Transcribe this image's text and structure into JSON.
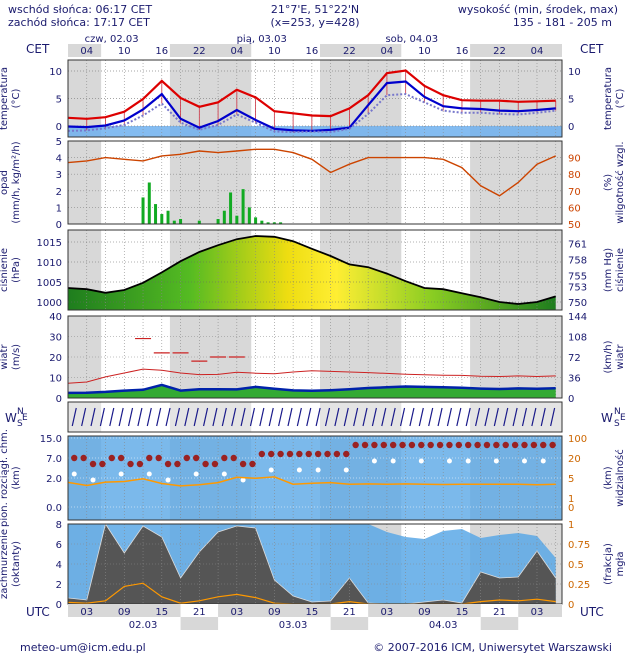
{
  "header": {
    "sunrise": "wschód słońca: 06:17 CET",
    "sunset": "zachód słońca: 17:17 CET",
    "coords": "21°7'E, 51°22'N",
    "grid": "(x=253,  y=428)",
    "height_title": "wysokość (min, środek, max)",
    "height_values": "135 - 181 - 205 m"
  },
  "top_axis": {
    "tz": "CET",
    "days": [
      "czw, 02.03",
      "pią, 03.03",
      "sob, 04.03"
    ],
    "hours": [
      "04",
      "10",
      "16",
      "22",
      "04",
      "10",
      "16",
      "22",
      "04",
      "10",
      "16",
      "22",
      "04"
    ]
  },
  "bottom_axis": {
    "tz": "UTC",
    "hours": [
      "03",
      "09",
      "15",
      "21",
      "03",
      "09",
      "15",
      "21",
      "03",
      "09",
      "15",
      "21",
      "03"
    ],
    "days": [
      "02.03",
      "03.03",
      "04.03"
    ]
  },
  "footer": {
    "email": "meteo-um@icm.edu.pl",
    "copyright": "© 2007-2016 ICM, Uniwersytet Warszawski"
  },
  "chart_data": [
    {
      "type": "line",
      "id": "temperature",
      "title_left": [
        "temperatura",
        "(°C)"
      ],
      "title_right": [
        "temperatura",
        "(°C)"
      ],
      "y_ticks": [
        "10",
        "5",
        "0"
      ],
      "ylim": [
        -2,
        12
      ],
      "x_hours_utc": [
        0,
        3,
        6,
        9,
        12,
        15,
        18,
        21,
        24,
        27,
        30,
        33,
        36,
        39,
        42,
        45,
        48,
        51,
        54,
        57,
        60,
        63,
        66,
        69,
        72,
        75,
        78
      ],
      "series": [
        {
          "name": "max",
          "color": "#dd0000",
          "values": [
            1.5,
            1.3,
            1.6,
            2.6,
            4.9,
            8.2,
            5.1,
            3.5,
            4.3,
            6.6,
            5.2,
            2.7,
            2.3,
            1.9,
            1.8,
            3.2,
            5.6,
            9.6,
            10.1,
            7.3,
            5.6,
            4.7,
            4.6,
            4.6,
            4.4,
            4.5,
            4.6
          ]
        },
        {
          "name": "mid",
          "color": "#0000cc",
          "values": [
            -0.1,
            -0.2,
            0.1,
            1.0,
            3.0,
            5.8,
            1.3,
            -0.3,
            0.9,
            2.9,
            1.1,
            -0.5,
            -0.8,
            -0.9,
            -0.7,
            -0.3,
            3.8,
            7.8,
            8.1,
            5.3,
            3.6,
            3.2,
            3.1,
            2.8,
            2.7,
            2.9,
            3.2
          ]
        },
        {
          "name": "min",
          "color": "#7777cc",
          "values": [
            -0.9,
            -0.8,
            -0.4,
            0.2,
            1.9,
            4.1,
            0.6,
            -0.7,
            0.2,
            2.1,
            0.6,
            -1.0,
            -1.1,
            -1.0,
            -1.1,
            -0.5,
            2.2,
            5.6,
            5.8,
            4.3,
            2.8,
            2.4,
            2.4,
            2.2,
            2.1,
            2.4,
            2.8
          ]
        }
      ]
    },
    {
      "type": "bar",
      "id": "precipitation",
      "title_left": [
        "opad",
        "(mm/h, kg/m²/h)"
      ],
      "title_right": [
        "(%)",
        "wilgotność wzgl."
      ],
      "y_ticks_left": [
        "5",
        "4",
        "3",
        "2",
        "1",
        "0"
      ],
      "ylim_left": [
        0,
        5
      ],
      "y_ticks_right": [
        "90",
        "80",
        "70",
        "60",
        "50"
      ],
      "ylim_right": [
        50,
        100
      ],
      "precip_hours_utc": [
        12,
        13,
        14,
        15,
        16,
        17,
        18,
        21,
        24,
        25,
        26,
        27,
        28,
        29,
        30,
        31,
        32,
        33,
        34
      ],
      "precip_values": [
        1.6,
        2.5,
        1.2,
        0.6,
        0.8,
        0.2,
        0.3,
        0.2,
        0.3,
        0.8,
        1.9,
        0.5,
        2.1,
        1.0,
        0.4,
        0.2,
        0.1,
        0.1,
        0.1
      ],
      "humidity": {
        "name": "wilgotność wzgl.",
        "color": "#cc4400",
        "x_hours_utc": [
          0,
          3,
          6,
          9,
          12,
          15,
          18,
          21,
          24,
          27,
          30,
          33,
          36,
          39,
          42,
          45,
          48,
          51,
          54,
          57,
          60,
          63,
          66,
          69,
          72,
          75,
          78
        ],
        "values": [
          87,
          88,
          90,
          89,
          88,
          91,
          92,
          94,
          93,
          94,
          95,
          95,
          93,
          89,
          81,
          86,
          90,
          90,
          90,
          90,
          89,
          84,
          73,
          67,
          75,
          86,
          91
        ]
      }
    },
    {
      "type": "area",
      "id": "pressure",
      "title_left": [
        "ciśnienie",
        "(hPa)"
      ],
      "title_right": [
        "(mm Hg)",
        "ciśnienie"
      ],
      "y_ticks_left": [
        "1015",
        "1010",
        "1005",
        "1000"
      ],
      "ylim_left": [
        998,
        1018
      ],
      "y_ticks_right": [
        "761",
        "758",
        "755",
        "753",
        "750"
      ],
      "x_hours_utc": [
        0,
        3,
        6,
        9,
        12,
        15,
        18,
        21,
        24,
        27,
        30,
        33,
        36,
        39,
        42,
        45,
        48,
        51,
        54,
        57,
        60,
        63,
        66,
        69,
        72,
        75,
        78
      ],
      "values": [
        1003.5,
        1003.2,
        1002.3,
        1003.0,
        1004.8,
        1007.4,
        1010.2,
        1012.5,
        1014.2,
        1015.7,
        1016.5,
        1016.3,
        1015.2,
        1013.3,
        1011.5,
        1009.4,
        1008.7,
        1007.1,
        1005.2,
        1003.5,
        1003.2,
        1002.2,
        1001.2,
        1000.0,
        999.5,
        1000.0,
        1001.4
      ]
    },
    {
      "type": "line",
      "id": "wind",
      "title_left": [
        "wiatr",
        "(m/s)"
      ],
      "title_right": [
        "(km/h)",
        "wiatr"
      ],
      "y_ticks_left": [
        "40",
        "30",
        "20",
        "10",
        "0"
      ],
      "ylim_left": [
        0,
        40
      ],
      "y_ticks_right": [
        "144",
        "108",
        "72",
        "36",
        "0"
      ],
      "x_hours_utc": [
        0,
        3,
        6,
        9,
        12,
        15,
        18,
        21,
        24,
        27,
        30,
        33,
        36,
        39,
        42,
        45,
        48,
        51,
        54,
        57,
        60,
        63,
        66,
        69,
        72,
        75,
        78
      ],
      "gust_values": [
        7.2,
        7.8,
        10.3,
        12.2,
        14.1,
        13.5,
        12.2,
        11.4,
        11.5,
        12.6,
        12.1,
        11.8,
        12.7,
        13.3,
        13.0,
        12.7,
        12.4,
        12.0,
        11.6,
        11.3,
        11.1,
        11.0,
        10.6,
        10.5,
        10.8,
        10.5,
        10.8
      ],
      "gust_marks_hours_utc": [
        12,
        15,
        18,
        21,
        24,
        27
      ],
      "gust_marks_values": [
        29,
        22,
        22,
        18,
        20,
        20
      ],
      "speed_values": [
        2.5,
        2.6,
        3.0,
        3.6,
        4.0,
        6.4,
        3.6,
        4.3,
        4.3,
        4.2,
        5.4,
        4.5,
        3.7,
        3.5,
        3.8,
        4.3,
        4.9,
        5.2,
        5.6,
        5.4,
        5.2,
        5.0,
        4.6,
        4.4,
        4.7,
        4.5,
        4.8
      ]
    },
    {
      "type": "scatter",
      "id": "clouds_visibility",
      "title_left": [
        "pion. rozciągł. chm.",
        "(km)"
      ],
      "title_right": [
        "(km)",
        "widzialność"
      ],
      "y_ticks_left": [
        "15.0",
        "7.0",
        "2.0",
        "0.0"
      ],
      "y_ticks_right": [
        "100",
        "20",
        "5",
        "1",
        "0"
      ],
      "visibility": {
        "color": "#ff9900",
        "x_hours_utc": [
          0,
          3,
          6,
          9,
          12,
          15,
          18,
          21,
          24,
          27,
          30,
          33,
          36,
          39,
          42,
          45,
          48,
          51,
          54,
          57,
          60,
          63,
          66,
          69,
          72,
          75,
          78
        ],
        "values": [
          4.2,
          3.2,
          4.3,
          4.5,
          5.6,
          3.8,
          3.1,
          3.4,
          4.1,
          6.3,
          5.8,
          6.5,
          3.6,
          3.9,
          4.1,
          3.6,
          3.7,
          3.6,
          3.7,
          3.6,
          3.5,
          3.6,
          3.6,
          3.6,
          3.6,
          3.4,
          3.6
        ]
      }
    },
    {
      "type": "area",
      "id": "cloud_cover",
      "title_left": [
        "zachmurzenie",
        "(oktanty)"
      ],
      "title_right": [
        "(frakcja)",
        "mgła"
      ],
      "y_ticks_left": [
        "8",
        "6",
        "4",
        "2",
        "0"
      ],
      "ylim_left": [
        0,
        8
      ],
      "y_ticks_right": [
        "1",
        "0.75",
        "0.5",
        "0.25",
        "0"
      ],
      "x_hours_utc": [
        0,
        3,
        6,
        9,
        12,
        15,
        18,
        21,
        24,
        27,
        30,
        33,
        36,
        39,
        42,
        45,
        48,
        51,
        54,
        57,
        60,
        63,
        66,
        69,
        72,
        75,
        78
      ],
      "total_cover": [
        8,
        8,
        8,
        8,
        8,
        8,
        8,
        8,
        8,
        8,
        8,
        8,
        8,
        8,
        8,
        8,
        8,
        7.2,
        6.7,
        6.5,
        7.3,
        7.5,
        6.6,
        6.9,
        7.1,
        6.8,
        4.6
      ],
      "low_cover": [
        0.6,
        0.4,
        8.0,
        5.1,
        7.8,
        6.7,
        2.6,
        5.2,
        7.2,
        7.8,
        7.6,
        2.4,
        0.8,
        0.2,
        0.3,
        2.6,
        0.1,
        0.0,
        0.0,
        0.2,
        0.4,
        0.1,
        3.2,
        2.6,
        2.7,
        5.3,
        2.6
      ],
      "fog_fraction": [
        0.02,
        0.01,
        0.04,
        0.22,
        0.26,
        0.09,
        0.01,
        0.04,
        0.09,
        0.12,
        0.08,
        0.01,
        0.0,
        0.0,
        0.0,
        0.03,
        0.0,
        0.0,
        0.0,
        0.0,
        0.0,
        0.0,
        0.03,
        0.05,
        0.04,
        0.06,
        0.03
      ]
    }
  ]
}
